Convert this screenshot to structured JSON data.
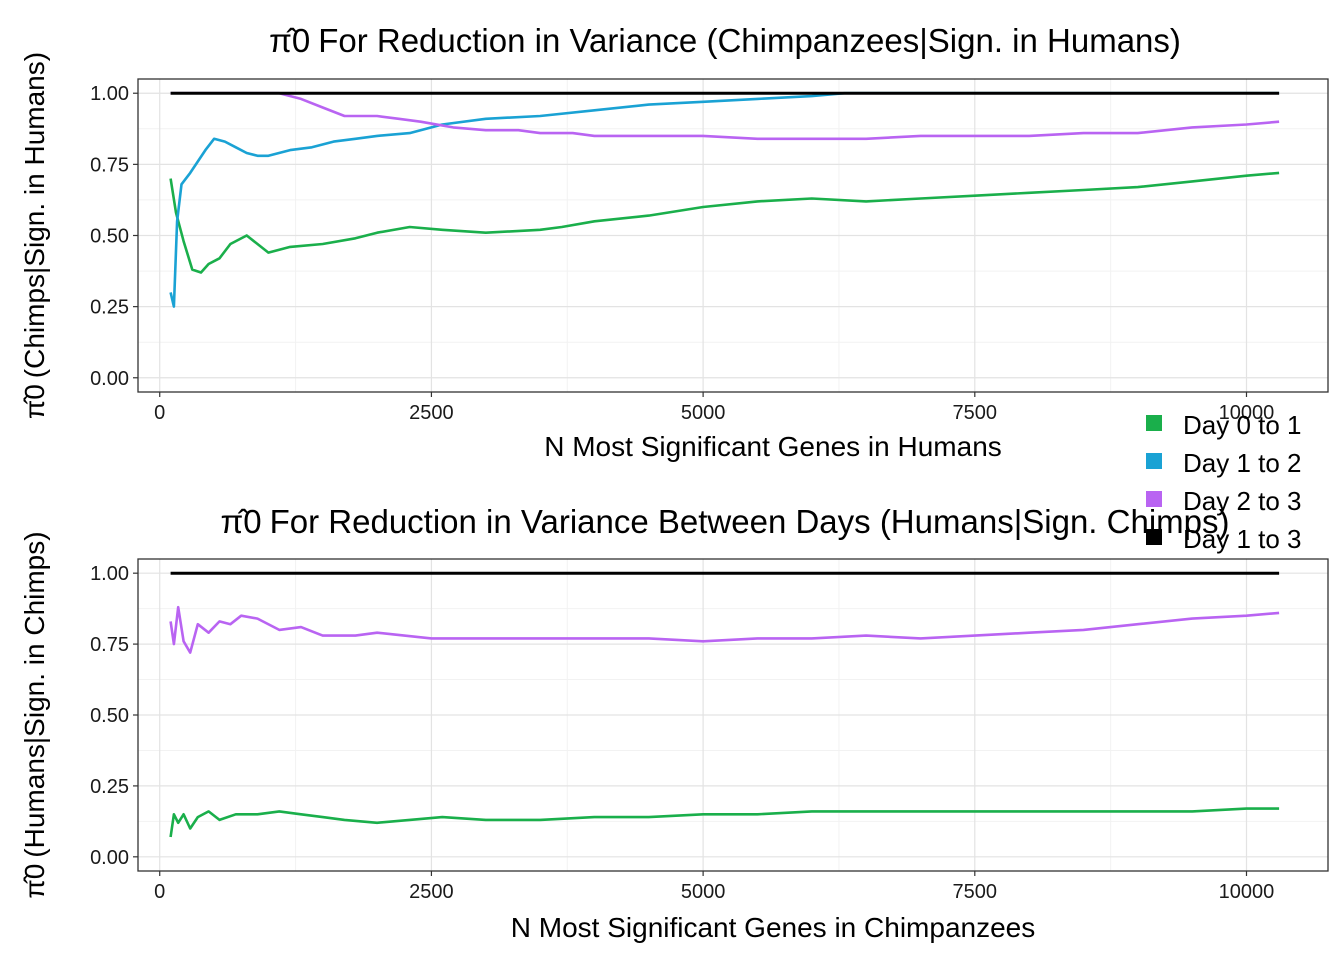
{
  "chart_data": [
    {
      "type": "line",
      "title": "For Reduction in Variance (Chimpanzees|Sign. in Humans)",
      "title_symbol": "π̂0",
      "xlabel": "N Most Significant Genes in Humans",
      "ylabel": "(Chimps|Sign. in Humans)",
      "ylabel_symbol": "π̂0",
      "xlim": [
        -200,
        10750
      ],
      "ylim": [
        -0.05,
        1.05
      ],
      "xticks": [
        0,
        2500,
        5000,
        7500,
        10000
      ],
      "yticks": [
        0.0,
        0.25,
        0.5,
        0.75,
        1.0
      ],
      "xtick_labels": [
        "0",
        "2500",
        "5000",
        "7500",
        "10000"
      ],
      "ytick_labels": [
        "0.00",
        "0.25",
        "0.50",
        "0.75",
        "1.00"
      ],
      "grid": true,
      "series": [
        {
          "name": "Day 0 to 1",
          "color": "#1aaf4b",
          "x": [
            100,
            150,
            220,
            300,
            380,
            450,
            550,
            650,
            800,
            1000,
            1200,
            1500,
            1800,
            2000,
            2300,
            2600,
            3000,
            3500,
            3700,
            4000,
            4500,
            5000,
            5500,
            6000,
            6500,
            7000,
            7500,
            8000,
            8500,
            9000,
            9500,
            10000,
            10300
          ],
          "y": [
            0.7,
            0.58,
            0.48,
            0.38,
            0.37,
            0.4,
            0.42,
            0.47,
            0.5,
            0.44,
            0.46,
            0.47,
            0.49,
            0.51,
            0.53,
            0.52,
            0.51,
            0.52,
            0.53,
            0.55,
            0.57,
            0.6,
            0.62,
            0.63,
            0.62,
            0.63,
            0.64,
            0.65,
            0.66,
            0.67,
            0.69,
            0.71,
            0.72
          ]
        },
        {
          "name": "Day 1 to 2",
          "color": "#1aa2d4",
          "x": [
            100,
            130,
            160,
            200,
            280,
            350,
            420,
            500,
            600,
            700,
            800,
            900,
            1000,
            1200,
            1400,
            1600,
            1800,
            2000,
            2300,
            2600,
            3000,
            3500,
            4000,
            4500,
            5000,
            5500,
            6000,
            6300,
            6500,
            8000,
            10300
          ],
          "y": [
            0.3,
            0.25,
            0.55,
            0.68,
            0.72,
            0.76,
            0.8,
            0.84,
            0.83,
            0.81,
            0.79,
            0.78,
            0.78,
            0.8,
            0.81,
            0.83,
            0.84,
            0.85,
            0.86,
            0.89,
            0.91,
            0.92,
            0.94,
            0.96,
            0.97,
            0.98,
            0.99,
            1.0,
            1.0,
            1.0,
            1.0
          ]
        },
        {
          "name": "Day 2 to 3",
          "color": "#b964f2",
          "x": [
            100,
            1100,
            1300,
            1500,
            1700,
            2000,
            2200,
            2400,
            2700,
            3000,
            3300,
            3500,
            3800,
            4000,
            4500,
            5000,
            5500,
            6000,
            6500,
            7000,
            7500,
            8000,
            8500,
            9000,
            9500,
            10000,
            10300
          ],
          "y": [
            1.0,
            1.0,
            0.98,
            0.95,
            0.92,
            0.92,
            0.91,
            0.9,
            0.88,
            0.87,
            0.87,
            0.86,
            0.86,
            0.85,
            0.85,
            0.85,
            0.84,
            0.84,
            0.84,
            0.85,
            0.85,
            0.85,
            0.86,
            0.86,
            0.88,
            0.89,
            0.9
          ]
        },
        {
          "name": "Day 1 to 3",
          "color": "#000000",
          "x": [
            100,
            10300
          ],
          "y": [
            1.0,
            1.0
          ]
        }
      ]
    },
    {
      "type": "line",
      "title": "For Reduction in Variance Between Days (Humans|Sign. Chimps)",
      "title_symbol": "π̂0",
      "xlabel": "N Most Significant Genes in Chimpanzees",
      "ylabel": "(Humans|Sign. in Chimps)",
      "ylabel_symbol": "π̂0",
      "xlim": [
        -200,
        10750
      ],
      "ylim": [
        -0.05,
        1.05
      ],
      "xticks": [
        0,
        2500,
        5000,
        7500,
        10000
      ],
      "yticks": [
        0.0,
        0.25,
        0.5,
        0.75,
        1.0
      ],
      "xtick_labels": [
        "0",
        "2500",
        "5000",
        "7500",
        "10000"
      ],
      "ytick_labels": [
        "0.00",
        "0.25",
        "0.50",
        "0.75",
        "1.00"
      ],
      "grid": true,
      "series": [
        {
          "name": "Day 0 to 1",
          "color": "#1aaf4b",
          "x": [
            100,
            130,
            170,
            220,
            280,
            350,
            450,
            550,
            700,
            900,
            1100,
            1300,
            1500,
            1700,
            2000,
            2300,
            2600,
            3000,
            3500,
            4000,
            4500,
            5000,
            5500,
            6000,
            6500,
            7000,
            7500,
            8000,
            8500,
            9000,
            9500,
            10000,
            10300
          ],
          "y": [
            0.07,
            0.15,
            0.12,
            0.15,
            0.1,
            0.14,
            0.16,
            0.13,
            0.15,
            0.15,
            0.16,
            0.15,
            0.14,
            0.13,
            0.12,
            0.13,
            0.14,
            0.13,
            0.13,
            0.14,
            0.14,
            0.15,
            0.15,
            0.16,
            0.16,
            0.16,
            0.16,
            0.16,
            0.16,
            0.16,
            0.16,
            0.17,
            0.17
          ]
        },
        {
          "name": "Day 2 to 3",
          "color": "#b964f2",
          "x": [
            100,
            130,
            170,
            220,
            280,
            350,
            450,
            550,
            650,
            750,
            900,
            1100,
            1300,
            1500,
            1800,
            2000,
            2500,
            3000,
            3500,
            4000,
            4500,
            5000,
            5500,
            6000,
            6500,
            7000,
            7500,
            8000,
            8500,
            9000,
            9500,
            10000,
            10300
          ],
          "y": [
            0.83,
            0.75,
            0.88,
            0.76,
            0.72,
            0.82,
            0.79,
            0.83,
            0.82,
            0.85,
            0.84,
            0.8,
            0.81,
            0.78,
            0.78,
            0.79,
            0.77,
            0.77,
            0.77,
            0.77,
            0.77,
            0.76,
            0.77,
            0.77,
            0.78,
            0.77,
            0.78,
            0.79,
            0.8,
            0.82,
            0.84,
            0.85,
            0.86
          ]
        },
        {
          "name": "Day 1 to 3",
          "color": "#000000",
          "x": [
            100,
            10300
          ],
          "y": [
            1.0,
            1.0
          ]
        }
      ]
    }
  ],
  "legend": {
    "placement": "right",
    "entries": [
      {
        "label": "Day 0 to 1",
        "color": "#1aaf4b"
      },
      {
        "label": "Day 1 to 2",
        "color": "#1aa2d4"
      },
      {
        "label": "Day 2 to 3",
        "color": "#b964f2"
      },
      {
        "label": "Day 1 to 3",
        "color": "#000000"
      }
    ]
  }
}
